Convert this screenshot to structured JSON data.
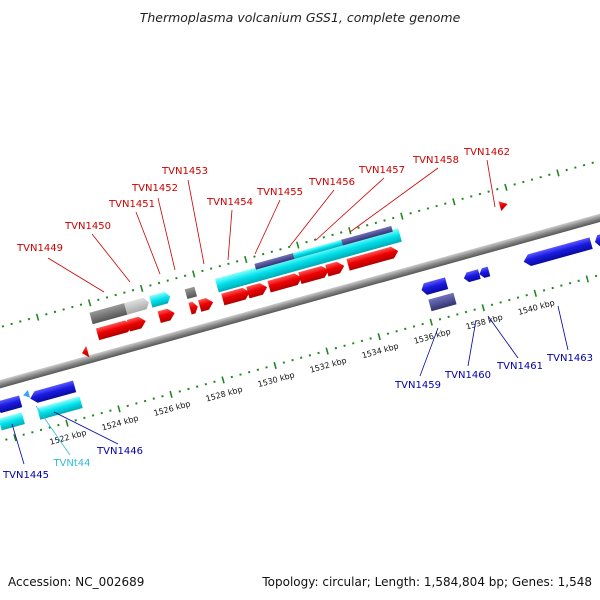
{
  "title": "Thermoplasma volcanium GSS1, complete genome",
  "footer": {
    "accession": "Accession: NC_002689",
    "summary": "Topology: circular; Length: 1,584,804 bp; Genes: 1,548"
  },
  "colors": {
    "forward_label": "#cc0000",
    "reverse_label": "#0000aa",
    "rna_label": "#33bbdd",
    "cds": "#ee0000",
    "cds_reverse": "#1a1ae0",
    "feature_cyan": "#00dde8",
    "feature_gray": "#777777",
    "feature_purple": "#4b4b99",
    "feature_pink": "#ee11aa",
    "backbone": "#8a8a8a",
    "dotted_track": "#228822"
  },
  "ticks": [
    "1522 kbp",
    "1524 kbp",
    "1526 kbp",
    "1528 kbp",
    "1530 kbp",
    "1532 kbp",
    "1534 kbp",
    "1536 kbp",
    "1538 kbp",
    "1540 kbp"
  ],
  "labels_forward": [
    "TVN1449",
    "TVN1450",
    "TVN1451",
    "TVN1452",
    "TVN1453",
    "TVN1454",
    "TVN1455",
    "TVN1456",
    "TVN1457",
    "TVN1458",
    "TVN1462"
  ],
  "labels_reverse": [
    "TVN1445",
    "TVNt44",
    "TVN1446",
    "TVN1459",
    "TVN1460",
    "TVN1461",
    "TVN1463"
  ]
}
